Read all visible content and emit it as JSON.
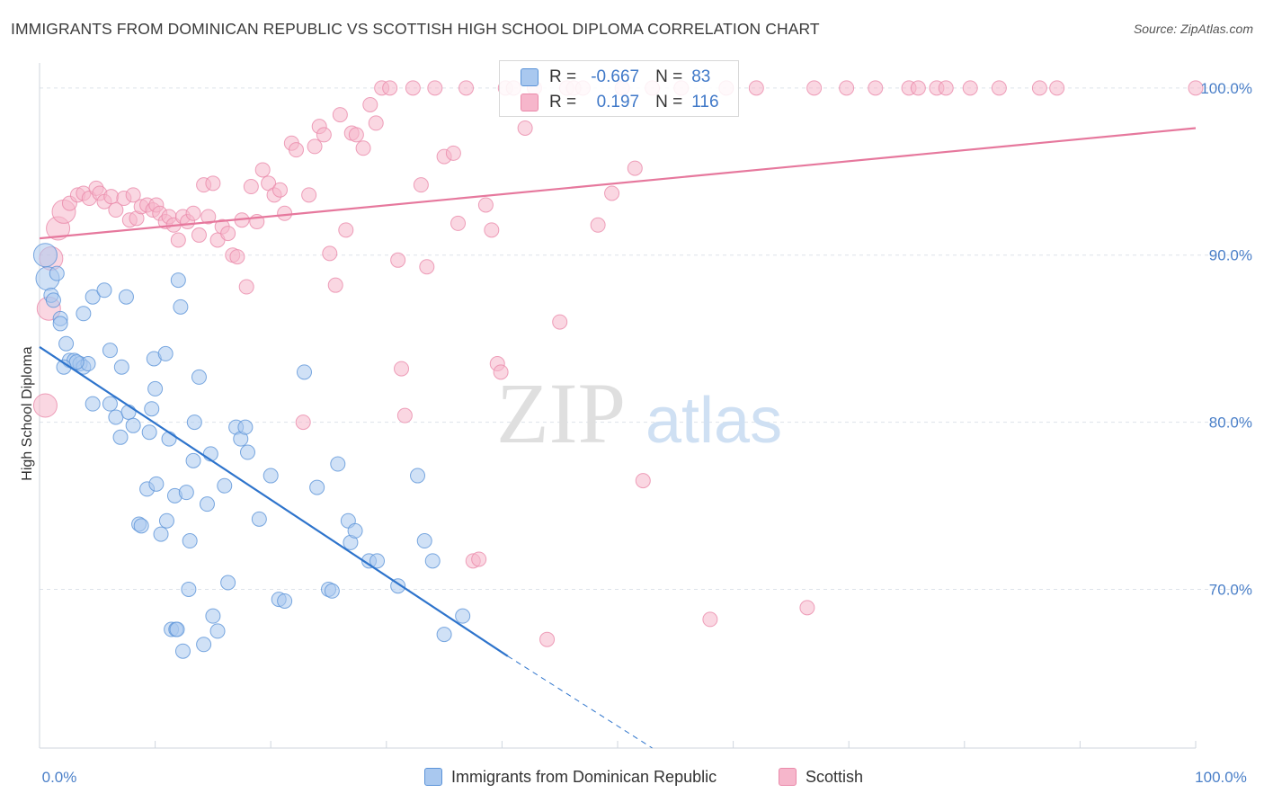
{
  "title": "IMMIGRANTS FROM DOMINICAN REPUBLIC VS SCOTTISH HIGH SCHOOL DIPLOMA CORRELATION CHART",
  "source": "Source: ZipAtlas.com",
  "watermark": {
    "zip": "ZIP",
    "atlas": "atlas"
  },
  "colors": {
    "blue_fill": "#a9c8ef",
    "blue_stroke": "#5b93d8",
    "blue_line": "#2e74cc",
    "pink_fill": "#f6b6cb",
    "pink_stroke": "#ea8aaa",
    "pink_line": "#e6789d",
    "tick": "#4a7fc8",
    "grid": "#dde3ea"
  },
  "legend": {
    "rows": [
      {
        "r_key": "R =",
        "r_val": "-0.667",
        "n_key": "N =",
        "n_val": "83"
      },
      {
        "r_key": "R =",
        "r_val": "0.197",
        "n_key": "N =",
        "n_val": "116"
      }
    ]
  },
  "bottom_legend": {
    "blue": "Immigrants from Dominican Republic",
    "pink": "Scottish"
  },
  "chart_data": {
    "type": "scatter",
    "title": "IMMIGRANTS FROM DOMINICAN REPUBLIC VS SCOTTISH HIGH SCHOOL DIPLOMA CORRELATION CHART",
    "xlabel": "",
    "ylabel": "High School Diploma",
    "xlim": [
      0,
      100
    ],
    "ylim": [
      60.5,
      101.5
    ],
    "x_ticks": [
      "0.0%",
      "100.0%"
    ],
    "y_ticks": [
      {
        "value": 100,
        "label": "100.0%"
      },
      {
        "value": 90,
        "label": "90.0%"
      },
      {
        "value": 80,
        "label": "80.0%"
      },
      {
        "value": 70,
        "label": "70.0%"
      }
    ],
    "grid": true,
    "series": [
      {
        "name": "Immigrants from Dominican Republic",
        "color": "blue",
        "R": -0.667,
        "N": 83,
        "trend": {
          "x0": 0,
          "y0": 84.5,
          "x1": 40.5,
          "y1": 66.0,
          "dash_x1": 53,
          "dash_y1": 60.5
        },
        "points": [
          [
            0.5,
            90.0,
            "L"
          ],
          [
            0.7,
            88.6,
            "L"
          ],
          [
            1.0,
            87.6
          ],
          [
            1.2,
            87.3
          ],
          [
            1.8,
            86.2
          ],
          [
            1.8,
            85.9
          ],
          [
            2.3,
            84.7
          ],
          [
            2.6,
            83.7
          ],
          [
            3.0,
            83.7
          ],
          [
            3.5,
            83.5
          ],
          [
            3.8,
            83.3
          ],
          [
            4.2,
            83.5
          ],
          [
            3.8,
            86.5
          ],
          [
            4.6,
            81.1
          ],
          [
            4.6,
            87.5
          ],
          [
            5.6,
            87.9
          ],
          [
            6.1,
            84.3
          ],
          [
            6.1,
            81.1
          ],
          [
            6.6,
            80.3
          ],
          [
            7.0,
            79.1
          ],
          [
            7.1,
            83.3
          ],
          [
            7.5,
            87.5
          ],
          [
            7.7,
            80.6
          ],
          [
            8.1,
            79.8
          ],
          [
            8.6,
            73.9
          ],
          [
            8.8,
            73.8
          ],
          [
            9.3,
            76.0
          ],
          [
            9.5,
            79.4
          ],
          [
            9.7,
            80.8
          ],
          [
            9.9,
            83.8
          ],
          [
            10.0,
            82.0
          ],
          [
            10.1,
            76.3
          ],
          [
            10.5,
            73.3
          ],
          [
            10.9,
            84.1
          ],
          [
            11.0,
            74.1
          ],
          [
            11.2,
            79.0
          ],
          [
            11.4,
            67.6
          ],
          [
            11.7,
            75.6
          ],
          [
            11.8,
            67.6
          ],
          [
            11.9,
            67.6
          ],
          [
            12.0,
            88.5
          ],
          [
            12.2,
            86.9
          ],
          [
            12.4,
            66.3
          ],
          [
            12.7,
            75.8
          ],
          [
            12.9,
            70.0
          ],
          [
            13.0,
            72.9
          ],
          [
            13.3,
            77.7
          ],
          [
            13.4,
            80.0
          ],
          [
            13.8,
            82.7
          ],
          [
            14.2,
            66.7
          ],
          [
            14.5,
            75.1
          ],
          [
            14.8,
            78.1
          ],
          [
            15.0,
            68.4
          ],
          [
            15.4,
            67.5
          ],
          [
            16.0,
            76.2
          ],
          [
            16.3,
            70.4
          ],
          [
            17.0,
            79.7
          ],
          [
            17.4,
            79.0
          ],
          [
            17.8,
            79.7
          ],
          [
            18.0,
            78.2
          ],
          [
            19.0,
            74.2
          ],
          [
            20.0,
            76.8
          ],
          [
            20.7,
            69.4
          ],
          [
            21.2,
            69.3
          ],
          [
            22.9,
            83.0
          ],
          [
            24.0,
            76.1
          ],
          [
            25.0,
            70.0
          ],
          [
            25.3,
            69.9
          ],
          [
            25.8,
            77.5
          ],
          [
            26.7,
            74.1
          ],
          [
            26.9,
            72.8
          ],
          [
            27.3,
            73.5
          ],
          [
            28.5,
            71.7
          ],
          [
            29.2,
            71.7
          ],
          [
            31.0,
            70.2
          ],
          [
            32.7,
            76.8
          ],
          [
            33.3,
            72.9
          ],
          [
            34.0,
            71.7
          ],
          [
            35.0,
            67.3
          ],
          [
            36.6,
            68.4
          ],
          [
            1.5,
            88.9
          ],
          [
            3.2,
            83.6
          ],
          [
            2.1,
            83.3
          ]
        ]
      },
      {
        "name": "Scottish",
        "color": "pink",
        "R": 0.197,
        "N": 116,
        "trend": {
          "x0": 0,
          "y0": 91.0,
          "x1": 100,
          "y1": 97.6
        },
        "points": [
          [
            0.5,
            81.0,
            "L"
          ],
          [
            0.8,
            86.8,
            "L"
          ],
          [
            1.0,
            89.8,
            "L"
          ],
          [
            1.6,
            91.6,
            "L"
          ],
          [
            2.1,
            92.6,
            "L"
          ],
          [
            2.6,
            93.1
          ],
          [
            3.3,
            93.6
          ],
          [
            3.8,
            93.7
          ],
          [
            4.3,
            93.4
          ],
          [
            4.9,
            94.0
          ],
          [
            5.2,
            93.7
          ],
          [
            5.6,
            93.2
          ],
          [
            6.2,
            93.5
          ],
          [
            6.6,
            92.7
          ],
          [
            7.3,
            93.4
          ],
          [
            7.8,
            92.1
          ],
          [
            8.1,
            93.6
          ],
          [
            8.4,
            92.2
          ],
          [
            8.8,
            92.9
          ],
          [
            9.3,
            93.0
          ],
          [
            9.8,
            92.7
          ],
          [
            10.1,
            93.0
          ],
          [
            10.4,
            92.5
          ],
          [
            10.9,
            92.0
          ],
          [
            11.2,
            92.3
          ],
          [
            11.6,
            91.8
          ],
          [
            12.0,
            90.9
          ],
          [
            12.4,
            92.3
          ],
          [
            12.8,
            92.0
          ],
          [
            13.3,
            92.5
          ],
          [
            13.8,
            91.2
          ],
          [
            14.2,
            94.2
          ],
          [
            14.6,
            92.3
          ],
          [
            15.0,
            94.3
          ],
          [
            15.4,
            90.9
          ],
          [
            15.8,
            91.7
          ],
          [
            16.3,
            91.3
          ],
          [
            16.7,
            90.0
          ],
          [
            17.1,
            89.9
          ],
          [
            17.5,
            92.1
          ],
          [
            17.9,
            88.1
          ],
          [
            18.3,
            94.1
          ],
          [
            18.8,
            92.0
          ],
          [
            19.3,
            95.1
          ],
          [
            19.8,
            94.3
          ],
          [
            20.3,
            93.6
          ],
          [
            20.8,
            93.9
          ],
          [
            21.2,
            92.5
          ],
          [
            21.8,
            96.7
          ],
          [
            22.2,
            96.3
          ],
          [
            22.8,
            80.0
          ],
          [
            23.3,
            93.6
          ],
          [
            23.8,
            96.5
          ],
          [
            24.2,
            97.7
          ],
          [
            24.6,
            97.2
          ],
          [
            25.1,
            90.1
          ],
          [
            25.6,
            88.2
          ],
          [
            26.0,
            98.4
          ],
          [
            26.5,
            91.5
          ],
          [
            27.0,
            97.3
          ],
          [
            27.4,
            97.2
          ],
          [
            28.0,
            96.4
          ],
          [
            28.6,
            99.0
          ],
          [
            29.1,
            97.9
          ],
          [
            29.6,
            100.0
          ],
          [
            30.3,
            100.0
          ],
          [
            31.0,
            89.7
          ],
          [
            31.3,
            83.2
          ],
          [
            31.6,
            80.4
          ],
          [
            32.3,
            100.0
          ],
          [
            33.0,
            94.2
          ],
          [
            33.5,
            89.3
          ],
          [
            34.2,
            100.0
          ],
          [
            35.0,
            95.9
          ],
          [
            35.8,
            96.1
          ],
          [
            36.2,
            91.9
          ],
          [
            36.9,
            100.0
          ],
          [
            37.5,
            71.7
          ],
          [
            38.0,
            71.8
          ],
          [
            38.6,
            93.0
          ],
          [
            39.1,
            91.5
          ],
          [
            39.6,
            83.5
          ],
          [
            39.9,
            83.0
          ],
          [
            40.3,
            100.0
          ],
          [
            41.0,
            100.0
          ],
          [
            42.0,
            97.6
          ],
          [
            42.8,
            100.0
          ],
          [
            43.9,
            67.0
          ],
          [
            45.0,
            86.0
          ],
          [
            45.6,
            100.0
          ],
          [
            46.2,
            100.0
          ],
          [
            47.0,
            100.0
          ],
          [
            48.3,
            91.8
          ],
          [
            49.5,
            93.7
          ],
          [
            50.4,
            100.0
          ],
          [
            51.5,
            95.2
          ],
          [
            52.2,
            76.5
          ],
          [
            53.0,
            100.0
          ],
          [
            55.5,
            100.0
          ],
          [
            58.0,
            68.2
          ],
          [
            59.4,
            100.0
          ],
          [
            62.0,
            100.0
          ],
          [
            66.4,
            68.9
          ],
          [
            67.0,
            100.0
          ],
          [
            69.8,
            100.0
          ],
          [
            72.3,
            100.0
          ],
          [
            75.2,
            100.0
          ],
          [
            76.0,
            100.0
          ],
          [
            77.6,
            100.0
          ],
          [
            78.4,
            100.0
          ],
          [
            80.5,
            100.0
          ],
          [
            83.0,
            100.0
          ],
          [
            86.5,
            100.0
          ],
          [
            88.0,
            100.0
          ],
          [
            100.0,
            100.0
          ]
        ]
      }
    ]
  }
}
